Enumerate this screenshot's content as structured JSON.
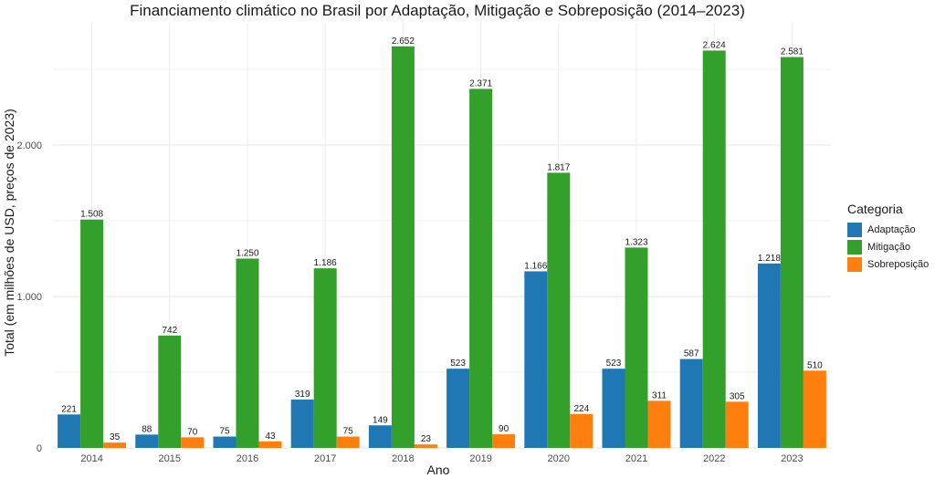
{
  "chart_data": {
    "type": "bar",
    "title": "Financiamento climático no Brasil por Adaptação, Mitigação e Sobreposição (2014–2023)",
    "xlabel": "Ano",
    "ylabel": "Total (em milhões de USD, preços de 2023)",
    "categories": [
      "2014",
      "2015",
      "2016",
      "2017",
      "2018",
      "2019",
      "2020",
      "2021",
      "2022",
      "2023"
    ],
    "ylim": [
      0,
      2800
    ],
    "yticks": [
      0,
      1000,
      2000
    ],
    "ytick_labels": [
      "0",
      "1.000",
      "2.000"
    ],
    "grid": true,
    "legend": {
      "title": "Categoria",
      "position": "right"
    },
    "series": [
      {
        "name": "Adaptação",
        "color": "#1f77b4",
        "values": [
          221,
          88,
          75,
          319,
          149,
          523,
          1166,
          523,
          587,
          1218
        ],
        "labels": [
          "221",
          "88",
          "75",
          "319",
          "149",
          "523",
          "1.166",
          "523",
          "587",
          "1.218"
        ]
      },
      {
        "name": "Mitigação",
        "color": "#33a02c",
        "values": [
          1508,
          742,
          1250,
          1186,
          2652,
          2371,
          1817,
          1323,
          2624,
          2581
        ],
        "labels": [
          "1.508",
          "742",
          "1.250",
          "1.186",
          "2.652",
          "2.371",
          "1.817",
          "1.323",
          "2.624",
          "2.581"
        ]
      },
      {
        "name": "Sobreposição",
        "color": "#ff7f0e",
        "values": [
          35,
          70,
          43,
          75,
          23,
          90,
          224,
          311,
          305,
          510
        ],
        "labels": [
          "35",
          "70",
          "43",
          "75",
          "23",
          "90",
          "224",
          "311",
          "305",
          "510"
        ]
      }
    ]
  }
}
